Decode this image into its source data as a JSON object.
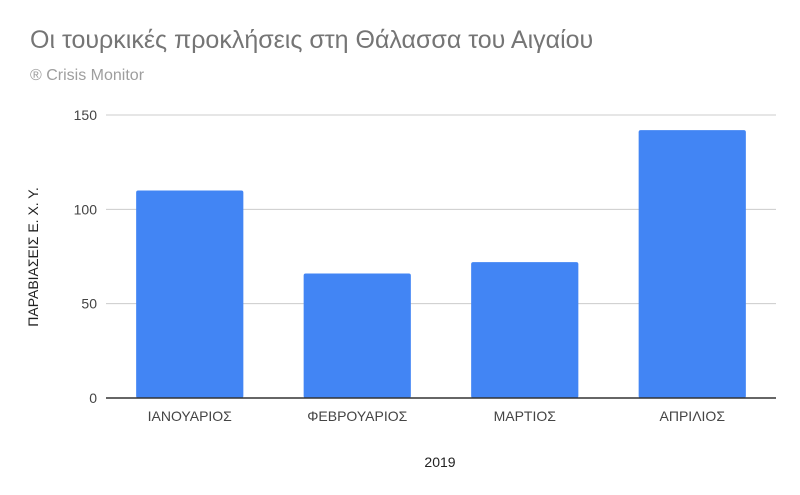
{
  "chart_data": {
    "type": "bar",
    "title": "Οι τουρκικές προκλήσεις στη Θάλασσα του Αιγαίου",
    "subtitle": "® Crisis Monitor",
    "categories": [
      "ΙΑΝΟΥΑΡΙΟΣ",
      "ΦΕΒΡΟΥΑΡΙΟΣ",
      "ΜΑΡΤΙΟΣ",
      "ΑΠΡΙΛΙΟΣ"
    ],
    "values": [
      110,
      66,
      72,
      142
    ],
    "xlabel": "2019",
    "ylabel": "ΠΑΡΑΒΙΑΣΕΙΣ Ε. Χ. Υ.",
    "ylim": [
      0,
      150
    ],
    "yticks": [
      0,
      50,
      100,
      150
    ],
    "grid": true,
    "legend": "none",
    "colors": {
      "bar": "#4285f4",
      "grid": "#cccccc",
      "axis": "#333333"
    }
  }
}
